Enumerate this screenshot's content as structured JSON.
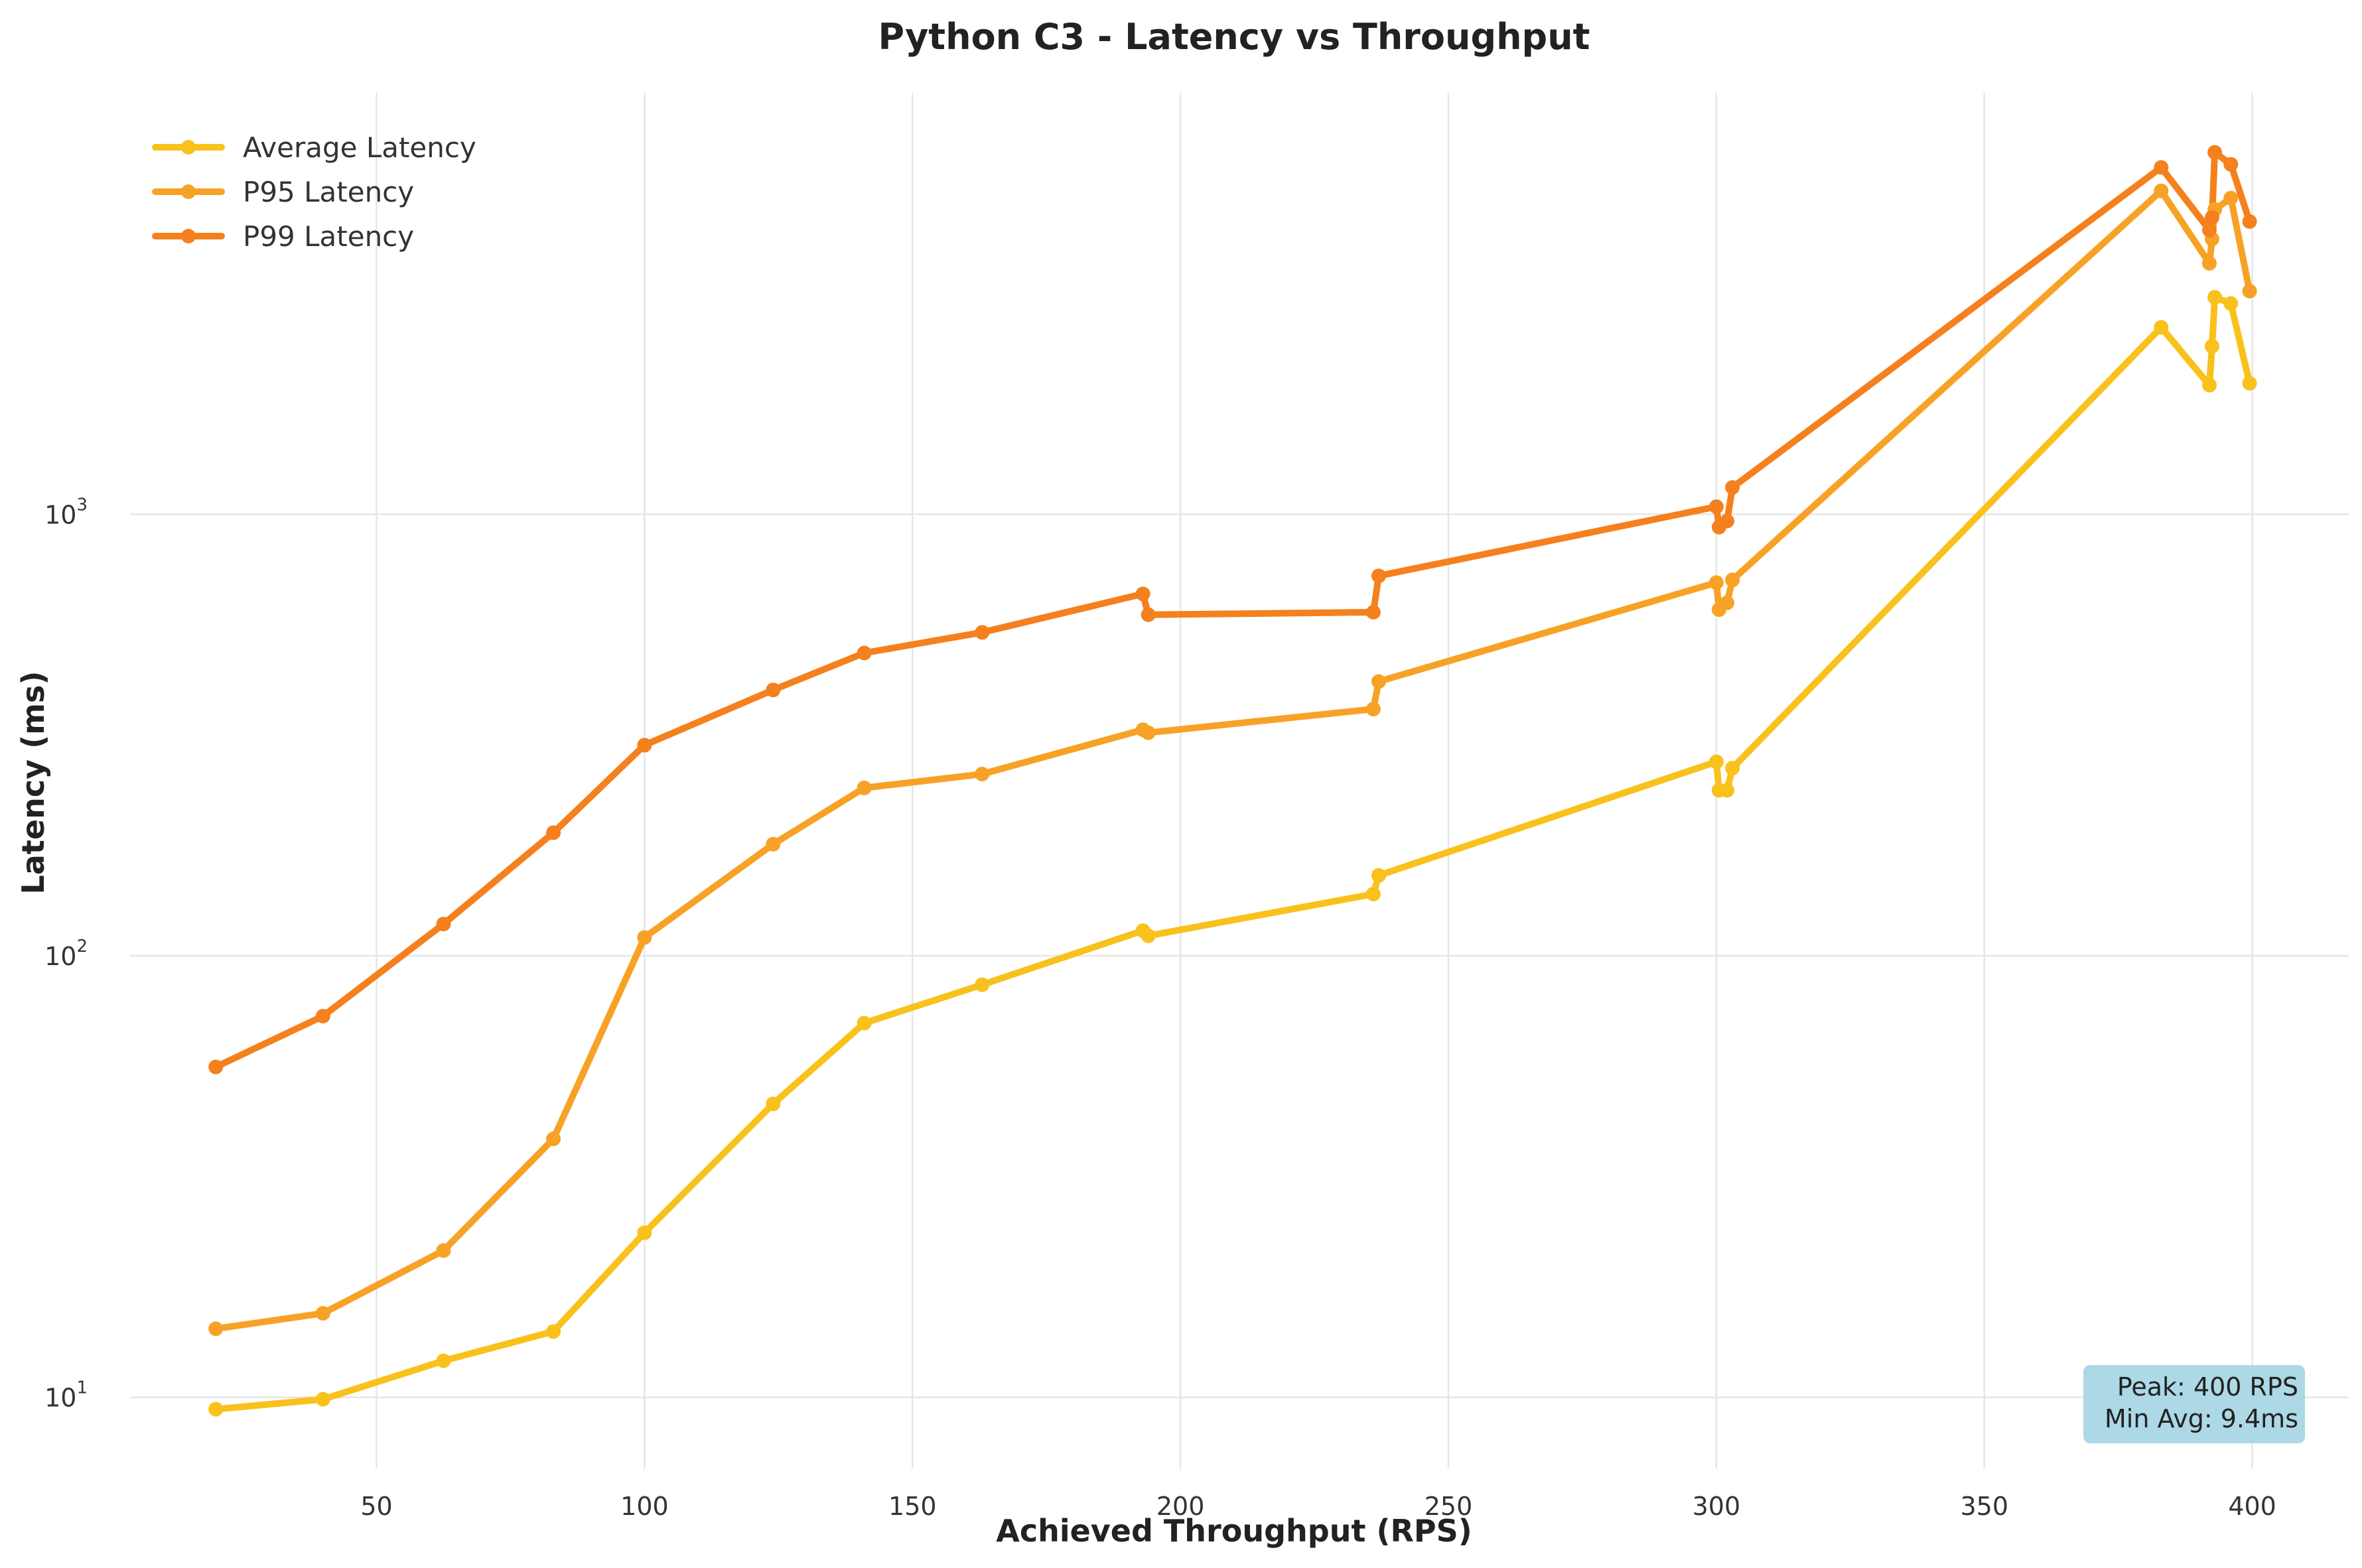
{
  "chart_data": {
    "type": "line",
    "title": "Python C3 - Latency vs Throughput",
    "xlabel": "Achieved Throughput (RPS)",
    "ylabel": "Latency (ms)",
    "xlim": [
      4,
      418
    ],
    "ylim": [
      6.9,
      9000
    ],
    "yscale": "log",
    "x_ticks": [
      50,
      100,
      150,
      200,
      250,
      300,
      350,
      400
    ],
    "y_ticks": [
      {
        "value": 10,
        "base": "10",
        "exp": "1"
      },
      {
        "value": 100,
        "base": "10",
        "exp": "2"
      },
      {
        "value": 1000,
        "base": "10",
        "exp": "3"
      }
    ],
    "grid": true,
    "legend_position": "top-left",
    "series": [
      {
        "name": "Average Latency",
        "color": "#F9C11C",
        "points": [
          [
            20,
            9.4
          ],
          [
            40,
            9.9
          ],
          [
            62.5,
            12.1
          ],
          [
            83,
            14.1
          ],
          [
            100,
            23.6
          ],
          [
            124,
            46.2
          ],
          [
            141,
            70.4
          ],
          [
            163,
            86
          ],
          [
            193,
            114
          ],
          [
            194,
            111
          ],
          [
            236,
            138
          ],
          [
            237,
            152
          ],
          [
            300,
            275
          ],
          [
            300.5,
            237
          ],
          [
            302,
            237
          ],
          [
            303,
            266
          ],
          [
            383,
            2650
          ],
          [
            392,
            1960
          ],
          [
            392.5,
            2400
          ],
          [
            393,
            3100
          ],
          [
            396,
            3000
          ],
          [
            399.5,
            1980
          ]
        ]
      },
      {
        "name": "P95 Latency",
        "color": "#F7A226",
        "points": [
          [
            20,
            14.3
          ],
          [
            40,
            15.5
          ],
          [
            62.5,
            21.5
          ],
          [
            83,
            38.5
          ],
          [
            100,
            110
          ],
          [
            124,
            179
          ],
          [
            141,
            240
          ],
          [
            163,
            258
          ],
          [
            193,
            325
          ],
          [
            194,
            320
          ],
          [
            236,
            362
          ],
          [
            237,
            418
          ],
          [
            300,
            700
          ],
          [
            300.5,
            608
          ],
          [
            302,
            630
          ],
          [
            303,
            710
          ],
          [
            383,
            5400
          ],
          [
            392,
            3700
          ],
          [
            392.5,
            4200
          ],
          [
            393,
            4900
          ],
          [
            396,
            5200
          ],
          [
            399.5,
            3200
          ]
        ]
      },
      {
        "name": "P99 Latency",
        "color": "#F5801E",
        "points": [
          [
            20,
            56
          ],
          [
            40,
            73
          ],
          [
            62.5,
            118
          ],
          [
            83,
            190
          ],
          [
            100,
            300
          ],
          [
            124,
            400
          ],
          [
            141,
            485
          ],
          [
            163,
            540
          ],
          [
            193,
            660
          ],
          [
            194,
            592
          ],
          [
            236,
            600
          ],
          [
            237,
            725
          ],
          [
            300,
            1040
          ],
          [
            300.5,
            935
          ],
          [
            302,
            965
          ],
          [
            303,
            1150
          ],
          [
            383,
            6100
          ],
          [
            392,
            4400
          ],
          [
            392.5,
            4700
          ],
          [
            393,
            6600
          ],
          [
            396,
            6200
          ],
          [
            399.5,
            4600
          ]
        ]
      }
    ],
    "annotation": {
      "lines": [
        "Peak: 400 RPS",
        "Min Avg: 9.4ms"
      ],
      "background": "#ADD8E6"
    }
  }
}
